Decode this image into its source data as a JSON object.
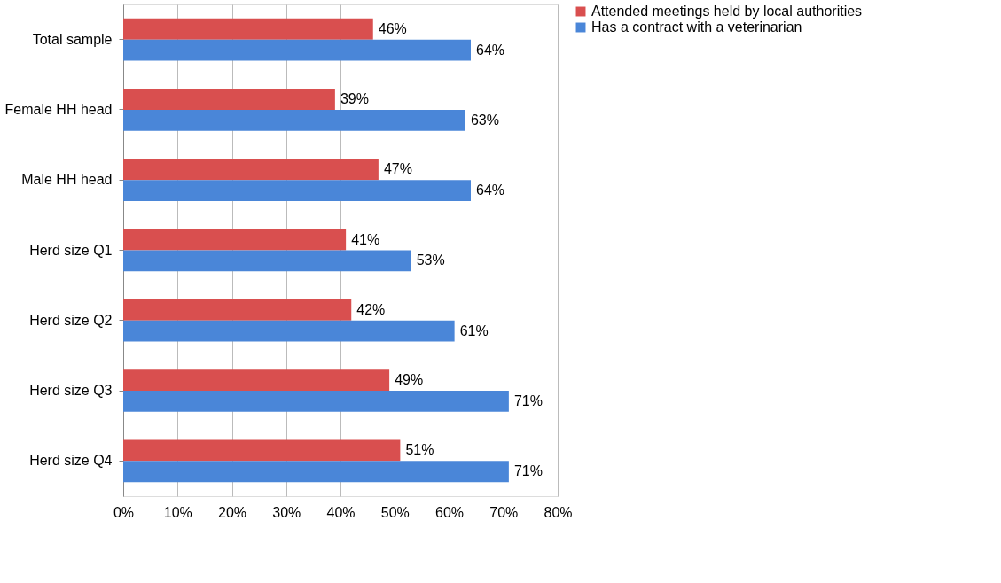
{
  "chart_data": {
    "type": "bar",
    "orientation": "horizontal",
    "categories": [
      "Total sample",
      "Female HH head",
      "Male HH head",
      "Herd size Q1",
      "Herd size Q2",
      "Herd size Q3",
      "Herd size Q4"
    ],
    "series": [
      {
        "name": "Attended meetings held by local authorities",
        "color": "#d94f4f",
        "values": [
          46,
          39,
          47,
          41,
          42,
          49,
          51
        ],
        "value_labels": [
          "46%",
          "39%",
          "47%",
          "41%",
          "42%",
          "49%",
          "51%"
        ]
      },
      {
        "name": "Has a contract with a veterinarian",
        "color": "#4a86d8",
        "values": [
          64,
          63,
          64,
          53,
          61,
          71,
          71
        ],
        "value_labels": [
          "64%",
          "63%",
          "64%",
          "53%",
          "61%",
          "71%",
          "71%"
        ]
      }
    ],
    "xlim": [
      0,
      80
    ],
    "xticks": [
      {
        "value": 0,
        "label": "0%"
      },
      {
        "value": 10,
        "label": "10%"
      },
      {
        "value": 20,
        "label": "20%"
      },
      {
        "value": 30,
        "label": "30%"
      },
      {
        "value": 40,
        "label": "40%"
      },
      {
        "value": 50,
        "label": "50%"
      },
      {
        "value": 60,
        "label": "60%"
      },
      {
        "value": 70,
        "label": "70%"
      },
      {
        "value": 80,
        "label": "80%"
      }
    ],
    "grid": "x",
    "legend": "right"
  }
}
